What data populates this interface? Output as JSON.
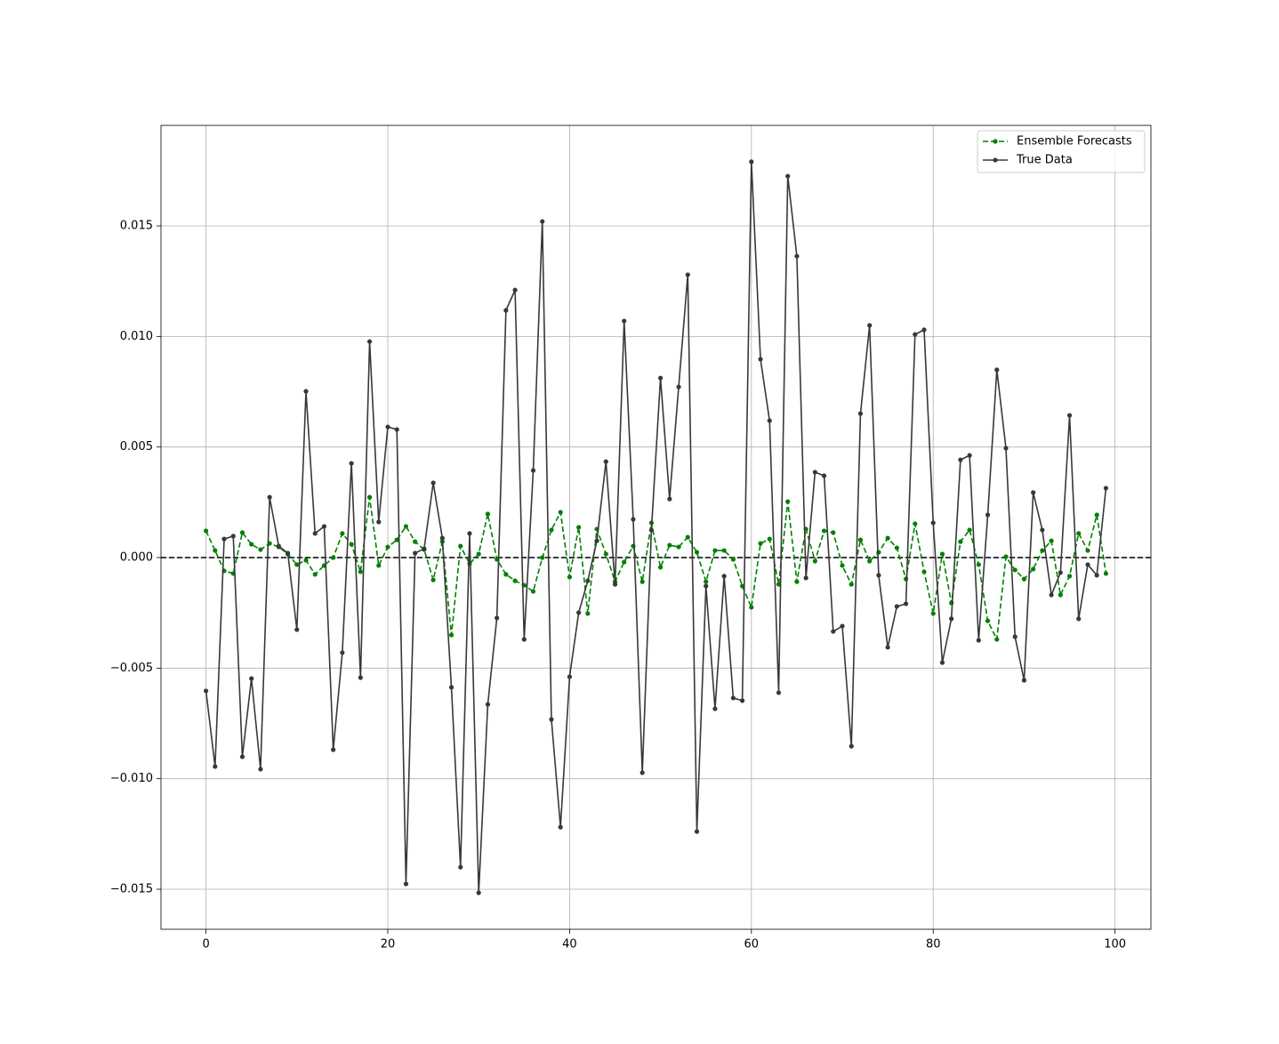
{
  "chart_data": {
    "type": "line",
    "x": [
      0,
      1,
      2,
      3,
      4,
      5,
      6,
      7,
      8,
      9,
      10,
      11,
      12,
      13,
      14,
      15,
      16,
      17,
      18,
      19,
      20,
      21,
      22,
      23,
      24,
      25,
      26,
      27,
      28,
      29,
      30,
      31,
      32,
      33,
      34,
      35,
      36,
      37,
      38,
      39,
      40,
      41,
      42,
      43,
      44,
      45,
      46,
      47,
      48,
      49,
      50,
      51,
      52,
      53,
      54,
      55,
      56,
      57,
      58,
      59,
      60,
      61,
      62,
      63,
      64,
      65,
      66,
      67,
      68,
      69,
      70,
      71,
      72,
      73,
      74,
      75,
      76,
      77,
      78,
      79,
      80,
      81,
      82,
      83,
      84,
      85,
      86,
      87,
      88,
      89,
      90,
      91,
      92,
      93,
      94,
      95,
      96,
      97,
      98,
      99
    ],
    "series": [
      {
        "name": "Ensemble Forecasts",
        "color": "#008000",
        "linestyle": "dashed",
        "values": [
          0.00121,
          0.00032,
          -0.0006,
          -0.00072,
          0.00113,
          0.0006,
          0.00036,
          0.00064,
          0.00048,
          0.00016,
          -0.00032,
          -0.00012,
          -0.00076,
          -0.00036,
          0,
          0.00109,
          0.0006,
          -0.00064,
          0.00273,
          -0.00036,
          0.00048,
          0.0008,
          0.00141,
          0.00072,
          0.00036,
          -0.00101,
          0.00072,
          -0.0035,
          0.00052,
          -0.00028,
          0.00016,
          0.00197,
          -8e-05,
          -0.00076,
          -0.00105,
          -0.00125,
          -0.00153,
          0,
          0.00125,
          0.00205,
          -0.00088,
          0.00137,
          -0.00253,
          0.00129,
          0.00016,
          -0.00109,
          -0.0002,
          0.00052,
          -0.00109,
          0.00157,
          -0.00044,
          0.00056,
          0.00048,
          0.00092,
          0.00024,
          -0.00109,
          0.00032,
          0.00032,
          -8e-05,
          -0.00129,
          -0.00225,
          0.00064,
          0.00084,
          -0.00121,
          0.00253,
          -0.00109,
          0.00129,
          -0.00016,
          0.00121,
          0.00113,
          -0.00036,
          -0.00121,
          0.0008,
          -0.00016,
          0.00024,
          0.00088,
          0.00044,
          -0.00097,
          0.00153,
          -0.00064,
          -0.00253,
          0.00016,
          -0.00205,
          0.00072,
          0.00125,
          -0.00032,
          -0.00286,
          -0.0037,
          4e-05,
          -0.00056,
          -0.00097,
          -0.00052,
          0.00032,
          0.00076,
          -0.00169,
          -0.00084,
          0.00109,
          0.00032,
          0.00193,
          -0.00072
        ]
      },
      {
        "name": "True Data",
        "color": "#383838",
        "linestyle": "solid",
        "values": [
          -0.00603,
          -0.00945,
          0.00084,
          0.00097,
          -0.00901,
          -0.00547,
          -0.00957,
          0.00273,
          0.00052,
          0.0002,
          -0.00326,
          0.00752,
          0.00109,
          0.00141,
          -0.00869,
          -0.0043,
          0.00426,
          -0.00543,
          0.00977,
          0.00161,
          0.00591,
          0.00579,
          -0.01476,
          0.0002,
          0.0004,
          0.00338,
          0.00088,
          -0.00587,
          -0.014,
          0.00109,
          -0.01516,
          -0.00664,
          -0.00273,
          0.01118,
          0.0121,
          -0.0037,
          0.00394,
          0.0152,
          -0.00732,
          -0.01219,
          -0.00539,
          -0.00249,
          -0.00105,
          0.00076,
          0.00434,
          -0.00121,
          0.0107,
          0.00173,
          -0.00973,
          0.00125,
          0.00812,
          0.00265,
          0.00772,
          0.01279,
          -0.01239,
          -0.00129,
          -0.00684,
          -0.00084,
          -0.00635,
          -0.00647,
          0.0179,
          0.00897,
          0.00619,
          -0.00611,
          0.01725,
          0.01363,
          -0.00092,
          0.00386,
          0.0037,
          -0.00334,
          -0.0031,
          -0.00853,
          0.00651,
          0.0105,
          -0.0008,
          -0.00406,
          -0.00221,
          -0.00209,
          0.01009,
          0.0103,
          0.00157,
          -0.00475,
          -0.00277,
          0.00442,
          0.00462,
          -0.00374,
          0.00193,
          0.00849,
          0.00495,
          -0.00358,
          -0.00555,
          0.00294,
          0.00125,
          -0.00169,
          -0.00068,
          0.00643,
          -0.00277,
          -0.00032,
          -0.0008,
          0.00314
        ]
      }
    ],
    "xlim": [
      -4.95,
      103.95
    ],
    "xticks": [
      0,
      20,
      40,
      60,
      80,
      100
    ],
    "ylim": [
      -0.01681,
      0.019545
    ],
    "yticks": [
      {
        "value": -0.015,
        "label": "−0.015"
      },
      {
        "value": -0.01,
        "label": "−0.010"
      },
      {
        "value": -0.005,
        "label": "−0.005"
      },
      {
        "value": 0,
        "label": "0.000"
      },
      {
        "value": 0.005,
        "label": "0.005"
      },
      {
        "value": 0.01,
        "label": "0.010"
      },
      {
        "value": 0.015,
        "label": "0.015"
      }
    ],
    "reference_line": 0,
    "grid": true,
    "legend": "upper-right"
  }
}
